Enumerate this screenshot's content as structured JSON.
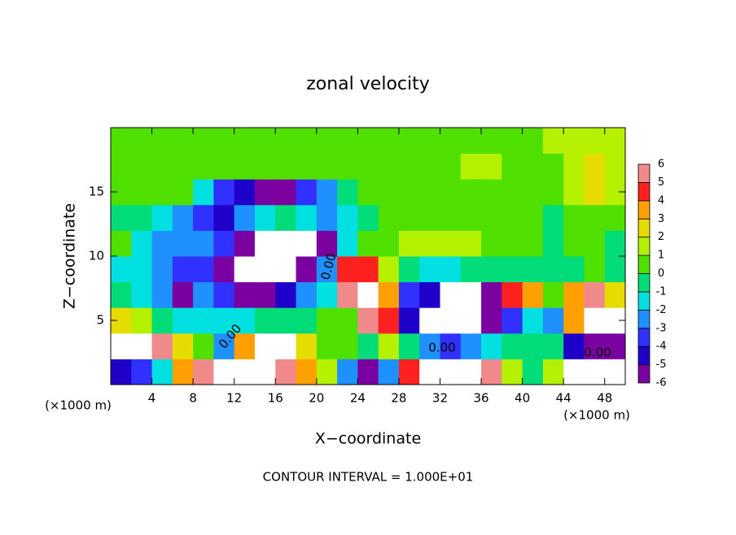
{
  "chart_data": {
    "type": "heatmap",
    "title": "zonal velocity",
    "xlabel": "X−coordinate",
    "ylabel": "Z−coordinate",
    "x_unit_left": "(×1000 m)",
    "x_unit_right": "(×1000 m)",
    "footnote": "CONTOUR INTERVAL = 1.000E+01",
    "contour_label": "0.00",
    "xlim": [
      0,
      50
    ],
    "ylim": [
      0,
      20
    ],
    "xticks": [
      4,
      8,
      12,
      16,
      20,
      24,
      28,
      32,
      36,
      40,
      44,
      48
    ],
    "yticks": [
      5,
      10,
      15
    ],
    "x": [
      1,
      3,
      5,
      7,
      9,
      11,
      13,
      15,
      17,
      19,
      21,
      23,
      25,
      27,
      29,
      31,
      33,
      35,
      37,
      39,
      41,
      43,
      45,
      47,
      49
    ],
    "y": [
      1,
      3,
      5,
      7,
      9,
      11,
      13,
      15,
      17,
      19
    ],
    "z": [
      [
        -4,
        -3,
        -1,
        4,
        6,
        8,
        8,
        8,
        6,
        4,
        2,
        -2,
        -5,
        -2,
        5,
        8,
        8,
        8,
        6,
        2,
        0,
        2,
        8,
        8,
        8
      ],
      [
        8,
        8,
        6,
        3,
        1,
        -2,
        4,
        8,
        8,
        3,
        1,
        0.5,
        0,
        2,
        0,
        -2,
        -3,
        -2,
        -1,
        0,
        0,
        -0.5,
        -4,
        -5,
        -5
      ],
      [
        3,
        2,
        0,
        -1,
        -1,
        -1.5,
        -1,
        0,
        0,
        0,
        1,
        1,
        6,
        5,
        -4,
        -8,
        -8,
        -8,
        -6,
        -3,
        -1,
        -2,
        4,
        8,
        8
      ],
      [
        -0.5,
        -1,
        -2,
        -5,
        -2,
        -3,
        -5,
        -5,
        -4,
        -2,
        -1,
        6,
        8,
        4,
        -3,
        -4,
        -8,
        -8,
        -5,
        5,
        4,
        0.5,
        4,
        6,
        3
      ],
      [
        -1,
        -1.5,
        -2,
        -3,
        -3,
        -5,
        -8,
        -8,
        -8,
        -6,
        -2,
        5,
        5,
        2,
        0,
        -1,
        -1,
        0,
        0,
        0,
        0,
        0,
        0,
        0.5,
        0
      ],
      [
        0.5,
        -1,
        -2,
        -2,
        -2,
        -3,
        -5,
        -8,
        -8,
        -8,
        -5,
        -1,
        0.5,
        1,
        1.5,
        2,
        2,
        1.5,
        1,
        0.5,
        0.5,
        0,
        0.5,
        0.5,
        0
      ],
      [
        0,
        -0.5,
        -1,
        -2.5,
        -3,
        -4,
        -2,
        -1,
        -0.5,
        -1,
        -2,
        -1,
        0,
        0.5,
        0.5,
        0.5,
        1,
        0.5,
        0.5,
        0.5,
        0.5,
        0,
        0.5,
        0.5,
        0.5
      ],
      [
        0.3,
        0.3,
        0.3,
        0.3,
        -1,
        -3,
        -4,
        -5,
        -5,
        -3,
        -2,
        0,
        0.5,
        0.5,
        0.5,
        0.5,
        1,
        1,
        1,
        1,
        1,
        1,
        2,
        3,
        2
      ],
      [
        0.3,
        0.3,
        0.3,
        0.3,
        0.3,
        0.3,
        0.3,
        0.3,
        0.3,
        0.3,
        0.3,
        0.5,
        0.5,
        0.5,
        0.5,
        0.5,
        1,
        1.5,
        1.5,
        1,
        1,
        1,
        2,
        3,
        2
      ],
      [
        0.5,
        0.5,
        0.5,
        0.5,
        0.5,
        0.5,
        0.5,
        0.5,
        0.5,
        0.5,
        0.5,
        0.5,
        0.5,
        1,
        1,
        1,
        1,
        1,
        1,
        1,
        1,
        1.5,
        1.5,
        1.5,
        1.5
      ]
    ],
    "colorbar_ticks": [
      -6,
      -5,
      -4,
      -3,
      -2,
      -1,
      0,
      1,
      2,
      3,
      4,
      5,
      6
    ],
    "colors": [
      "#7a00a0",
      "#1e00c8",
      "#3030ff",
      "#1e90ff",
      "#00e0e0",
      "#00dc78",
      "#50e000",
      "#b4f000",
      "#e6dc00",
      "#ffa000",
      "#ff2020",
      "#f08a8a"
    ]
  }
}
